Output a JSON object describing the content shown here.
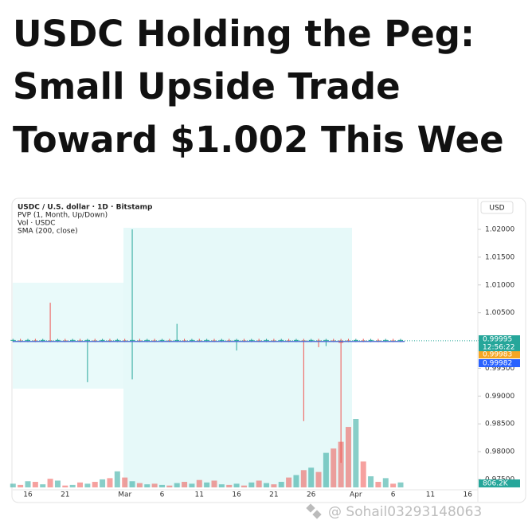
{
  "header": {
    "title_lines": [
      "USDC Holding the Peg:",
      "Small Upside Trade",
      "Toward $1.002 This Wee"
    ]
  },
  "chart_data": {
    "type": "candlestick",
    "legend_lines": [
      "USDC / U.S. dollar · 1D · Bitstamp",
      "PVP (1, Month, Up/Down)",
      "Vol · USDC",
      "SMA (200, close)"
    ],
    "currency": "USD",
    "categories": [
      null,
      null,
      "16",
      null,
      null,
      null,
      null,
      "21",
      null,
      null,
      null,
      null,
      null,
      null,
      null,
      "Mar",
      null,
      null,
      null,
      null,
      "6",
      null,
      null,
      null,
      null,
      "11",
      null,
      null,
      null,
      null,
      "16",
      null,
      null,
      null,
      null,
      "21",
      null,
      null,
      null,
      null,
      "26",
      null,
      null,
      null,
      null,
      null,
      "Apr",
      null,
      null,
      null,
      null,
      "6",
      null,
      null,
      null,
      null,
      "11",
      null,
      null,
      null,
      null,
      "16",
      null,
      null
    ],
    "open": [
      1.0,
      1.0,
      1.0,
      1.0,
      1.0,
      1.0,
      1.0,
      1.0,
      1.0,
      1.0,
      1.0,
      1.0,
      1.0,
      1.0,
      1.0,
      1.0,
      1.0,
      1.0,
      1.0,
      1.0,
      1.0,
      1.0,
      1.0,
      1.0,
      1.0,
      1.0,
      1.0,
      1.0,
      1.0,
      1.0,
      1.0,
      1.0,
      1.0,
      1.0,
      1.0,
      1.0,
      1.0,
      1.0,
      1.0,
      1.0,
      1.0,
      1.0,
      1.0,
      1.0,
      1.0,
      1.0,
      1.0,
      1.0,
      1.0,
      1.0,
      1.0,
      1.0,
      1.0,
      null,
      null,
      null,
      null,
      null,
      null,
      null,
      null,
      null,
      null,
      null
    ],
    "high": [
      1.0003,
      1.0003,
      1.0003,
      1.0003,
      1.0003,
      1.0068,
      1.0003,
      1.0003,
      1.0003,
      1.0003,
      1.0003,
      1.0003,
      1.0003,
      1.0003,
      1.0003,
      1.0003,
      1.02,
      1.0003,
      1.0003,
      1.0003,
      1.0003,
      1.0003,
      1.003,
      1.0003,
      1.0003,
      1.0003,
      1.0003,
      1.0003,
      1.0003,
      1.0003,
      1.0003,
      1.0003,
      1.0003,
      1.0003,
      1.0003,
      1.0003,
      1.0003,
      1.0003,
      1.0003,
      1.0003,
      1.0003,
      1.0003,
      1.0003,
      1.0003,
      1.0003,
      1.0003,
      1.0003,
      1.0003,
      1.0003,
      1.0003,
      1.0003,
      1.0003,
      1.0003,
      null,
      null,
      null,
      null,
      null,
      null,
      null,
      null,
      null,
      null,
      null
    ],
    "low": [
      0.9997,
      0.9997,
      0.9997,
      0.9997,
      0.9997,
      0.9997,
      0.9997,
      0.9997,
      0.9997,
      0.9997,
      0.9925,
      0.9997,
      0.9997,
      0.9997,
      0.9997,
      0.9997,
      0.993,
      0.9997,
      0.9997,
      0.9997,
      0.9997,
      0.9997,
      0.9997,
      0.9997,
      0.9997,
      0.9997,
      0.9997,
      0.9997,
      0.9997,
      0.9997,
      0.9982,
      0.9997,
      0.9997,
      0.9997,
      0.9997,
      0.9997,
      0.9997,
      0.9997,
      0.9997,
      0.9855,
      0.9997,
      0.9988,
      0.999,
      0.9997,
      0.978,
      0.9997,
      0.9997,
      0.9997,
      0.9997,
      0.9997,
      0.9997,
      0.9997,
      0.9997,
      null,
      null,
      null,
      null,
      null,
      null,
      null,
      null,
      null,
      null,
      null
    ],
    "close": [
      1.0001,
      0.9999,
      1.0001,
      0.9999,
      1.0001,
      0.9999,
      1.0001,
      0.9999,
      1.0001,
      0.9999,
      1.0001,
      0.9999,
      1.0001,
      0.9999,
      1.0001,
      0.9999,
      1.0001,
      0.9999,
      1.0001,
      0.9999,
      1.0001,
      0.9999,
      1.0001,
      0.9999,
      1.0001,
      0.9999,
      1.0001,
      0.9999,
      1.0001,
      0.9999,
      1.0001,
      0.9999,
      1.0001,
      0.9999,
      1.0001,
      0.9999,
      1.0001,
      0.9999,
      1.0001,
      0.9998,
      1.0001,
      0.9999,
      1.0001,
      0.9999,
      0.9996,
      0.9999,
      1.0001,
      0.9999,
      1.0001,
      0.9999,
      1.0001,
      0.9999,
      1.0001,
      null,
      null,
      null,
      null,
      null,
      null,
      null,
      null,
      null,
      null,
      null
    ],
    "volume": [
      600000,
      400000,
      1000000,
      900000,
      500000,
      1400000,
      1100000,
      300000,
      400000,
      800000,
      600000,
      900000,
      1300000,
      1500000,
      2600000,
      1600000,
      1000000,
      700000,
      500000,
      600000,
      400000,
      300000,
      700000,
      900000,
      600000,
      1200000,
      800000,
      1100000,
      500000,
      400000,
      600000,
      300000,
      800000,
      1100000,
      700000,
      500000,
      900000,
      1600000,
      2000000,
      2800000,
      3200000,
      2500000,
      5600000,
      6300000,
      7400000,
      9800000,
      11100000,
      4200000,
      1800000,
      900000,
      1500000,
      600000,
      806200,
      null,
      null,
      null,
      null,
      null,
      null,
      null,
      null,
      null,
      null,
      null
    ],
    "volume_labels": [
      null,
      null,
      null,
      null,
      null,
      null,
      null,
      null,
      null,
      null,
      null,
      null,
      null,
      null,
      null,
      null,
      null,
      null,
      null,
      null,
      null,
      null,
      null,
      null,
      null,
      null,
      null,
      null,
      null,
      null,
      null,
      null,
      null,
      null,
      null,
      null,
      null,
      null,
      null,
      null,
      null,
      null,
      null,
      null,
      null,
      null,
      null,
      null,
      null,
      null,
      null,
      null,
      "806.2K",
      null,
      null,
      null,
      null,
      null,
      null,
      null,
      null,
      null,
      null,
      null
    ],
    "up_color": "#26a69a",
    "down_color": "#ef5350",
    "price_labels": [
      {
        "value": 0.99995,
        "label": "0.99995",
        "color": "#26a69a"
      },
      {
        "value": 0.99983,
        "label": "0.99983",
        "color": "#f5a623"
      },
      {
        "value": 0.99982,
        "label": "0.99982",
        "color": "#2962ff"
      }
    ],
    "countdown": "12:56:22",
    "ylim": [
      0.975,
      1.02
    ],
    "yticks": [
      {
        "value": 0.975,
        "label": "0.97500"
      },
      {
        "value": 0.98,
        "label": "0.98000"
      },
      {
        "value": 0.985,
        "label": "0.98500"
      },
      {
        "value": 0.99,
        "label": "0.99000"
      },
      {
        "value": 0.995,
        "label": "0.99500"
      },
      {
        "value": 1.0,
        "label": "1.00000"
      },
      {
        "value": 1.005,
        "label": "1.00500"
      },
      {
        "value": 1.01,
        "label": "1.01000"
      },
      {
        "value": 1.015,
        "label": "1.01500"
      },
      {
        "value": 1.02,
        "label": "1.02000"
      }
    ]
  },
  "watermark": "@ Sohail03293148063"
}
